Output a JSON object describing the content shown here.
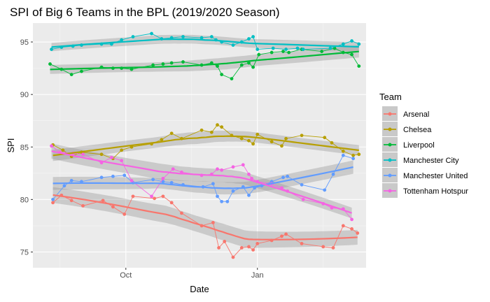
{
  "chart_data": {
    "type": "line",
    "title": "SPI of Big 6 Teams in the BPL (2019/2020 Season)",
    "xlabel": "Date",
    "ylabel": "SPI",
    "x_ticks": [
      {
        "label": "Oct",
        "date": "2019-10-01"
      },
      {
        "label": "Jan",
        "date": "2020-01-01"
      }
    ],
    "xlim": [
      "2019-07-28",
      "2020-03-17"
    ],
    "ylim": [
      73.5,
      96.8
    ],
    "y_ticks": [
      75,
      80,
      85,
      90,
      95
    ],
    "grid": true,
    "legend_title": "Team",
    "legend_position": "right",
    "smoothing": "loess with confidence band",
    "series": [
      {
        "name": "Arsenal",
        "color": "#F8766D",
        "points": [
          [
            "2019-08-11",
            79.7
          ],
          [
            "2019-08-17",
            80.4
          ],
          [
            "2019-08-24",
            79.9
          ],
          [
            "2019-09-01",
            79.4
          ],
          [
            "2019-09-15",
            79.9
          ],
          [
            "2019-09-22",
            79.3
          ],
          [
            "2019-09-30",
            78.6
          ],
          [
            "2019-10-06",
            80.3
          ],
          [
            "2019-10-21",
            80.1
          ],
          [
            "2019-10-27",
            80.3
          ],
          [
            "2019-11-02",
            79.7
          ],
          [
            "2019-11-09",
            78.7
          ],
          [
            "2019-11-23",
            77.5
          ],
          [
            "2019-12-01",
            77.8
          ],
          [
            "2019-12-05",
            75.4
          ],
          [
            "2019-12-09",
            76.0
          ],
          [
            "2019-12-15",
            74.5
          ],
          [
            "2019-12-21",
            75.4
          ],
          [
            "2019-12-26",
            75.5
          ],
          [
            "2019-12-29",
            75.2
          ],
          [
            "2020-01-01",
            75.8
          ],
          [
            "2020-01-11",
            76.1
          ],
          [
            "2020-01-18",
            76.5
          ],
          [
            "2020-01-21",
            76.7
          ],
          [
            "2020-02-01",
            75.8
          ],
          [
            "2020-02-16",
            75.5
          ],
          [
            "2020-02-23",
            75.4
          ],
          [
            "2020-03-01",
            77.5
          ],
          [
            "2020-03-07",
            77.2
          ],
          [
            "2020-03-11",
            76.8
          ]
        ]
      },
      {
        "name": "Chelsea",
        "color": "#B79F00",
        "points": [
          [
            "2019-08-11",
            85.2
          ],
          [
            "2019-08-18",
            84.7
          ],
          [
            "2019-08-24",
            84.1
          ],
          [
            "2019-08-31",
            84.5
          ],
          [
            "2019-09-14",
            84.3
          ],
          [
            "2019-09-22",
            83.9
          ],
          [
            "2019-09-28",
            84.7
          ],
          [
            "2019-10-05",
            85.0
          ],
          [
            "2019-10-19",
            85.3
          ],
          [
            "2019-10-26",
            85.7
          ],
          [
            "2019-11-02",
            86.3
          ],
          [
            "2019-11-09",
            85.8
          ],
          [
            "2019-11-23",
            86.6
          ],
          [
            "2019-11-30",
            86.4
          ],
          [
            "2019-12-04",
            87.1
          ],
          [
            "2019-12-07",
            86.9
          ],
          [
            "2019-12-14",
            86.1
          ],
          [
            "2019-12-21",
            85.8
          ],
          [
            "2019-12-26",
            85.6
          ],
          [
            "2019-12-29",
            85.3
          ],
          [
            "2020-01-01",
            86.2
          ],
          [
            "2020-01-11",
            85.5
          ],
          [
            "2020-01-18",
            85.1
          ],
          [
            "2020-01-21",
            85.8
          ],
          [
            "2020-02-01",
            86.1
          ],
          [
            "2020-02-17",
            85.9
          ],
          [
            "2020-02-22",
            85.4
          ],
          [
            "2020-03-01",
            84.6
          ],
          [
            "2020-03-08",
            84.2
          ],
          [
            "2020-03-12",
            84.3
          ]
        ]
      },
      {
        "name": "Liverpool",
        "color": "#00BA38",
        "points": [
          [
            "2019-08-09",
            92.9
          ],
          [
            "2019-08-17",
            92.4
          ],
          [
            "2019-08-24",
            91.9
          ],
          [
            "2019-08-31",
            92.2
          ],
          [
            "2019-09-14",
            92.6
          ],
          [
            "2019-09-22",
            92.5
          ],
          [
            "2019-09-28",
            92.5
          ],
          [
            "2019-10-05",
            92.4
          ],
          [
            "2019-10-20",
            92.8
          ],
          [
            "2019-10-27",
            92.9
          ],
          [
            "2019-11-02",
            93.0
          ],
          [
            "2019-11-10",
            93.1
          ],
          [
            "2019-11-23",
            92.8
          ],
          [
            "2019-11-30",
            93.0
          ],
          [
            "2019-12-04",
            92.7
          ],
          [
            "2019-12-07",
            91.9
          ],
          [
            "2019-12-14",
            91.5
          ],
          [
            "2019-12-21",
            92.8
          ],
          [
            "2019-12-26",
            93.0
          ],
          [
            "2019-12-29",
            92.6
          ],
          [
            "2020-01-02",
            93.8
          ],
          [
            "2020-01-11",
            94.0
          ],
          [
            "2020-01-19",
            94.1
          ],
          [
            "2020-01-23",
            94.0
          ],
          [
            "2020-02-01",
            94.3
          ],
          [
            "2020-02-15",
            94.1
          ],
          [
            "2020-02-24",
            94.4
          ],
          [
            "2020-03-01",
            94.0
          ],
          [
            "2020-03-07",
            93.8
          ],
          [
            "2020-03-12",
            92.7
          ]
        ]
      },
      {
        "name": "Manchester City",
        "color": "#00BFC4",
        "points": [
          [
            "2019-08-10",
            94.3
          ],
          [
            "2019-08-17",
            94.5
          ],
          [
            "2019-08-25",
            94.6
          ],
          [
            "2019-08-31",
            94.7
          ],
          [
            "2019-09-14",
            94.8
          ],
          [
            "2019-09-21",
            94.8
          ],
          [
            "2019-09-28",
            95.2
          ],
          [
            "2019-10-06",
            95.5
          ],
          [
            "2019-10-19",
            95.8
          ],
          [
            "2019-10-26",
            95.3
          ],
          [
            "2019-11-02",
            95.4
          ],
          [
            "2019-11-10",
            95.5
          ],
          [
            "2019-11-23",
            95.4
          ],
          [
            "2019-11-30",
            95.5
          ],
          [
            "2019-12-03",
            95.2
          ],
          [
            "2019-12-07",
            95.0
          ],
          [
            "2019-12-15",
            94.7
          ],
          [
            "2019-12-21",
            95.0
          ],
          [
            "2019-12-26",
            95.3
          ],
          [
            "2019-12-29",
            95.5
          ],
          [
            "2020-01-01",
            94.3
          ],
          [
            "2020-01-12",
            94.4
          ],
          [
            "2020-01-21",
            94.3
          ],
          [
            "2020-01-29",
            94.4
          ],
          [
            "2020-02-02",
            94.3
          ],
          [
            "2020-02-21",
            94.4
          ],
          [
            "2020-03-01",
            94.8
          ],
          [
            "2020-03-07",
            95.1
          ],
          [
            "2020-03-12",
            94.8
          ]
        ]
      },
      {
        "name": "Manchester United",
        "color": "#619CFF",
        "points": [
          [
            "2019-08-11",
            80.0
          ],
          [
            "2019-08-19",
            81.3
          ],
          [
            "2019-08-24",
            81.8
          ],
          [
            "2019-08-31",
            81.7
          ],
          [
            "2019-09-14",
            82.1
          ],
          [
            "2019-09-22",
            82.2
          ],
          [
            "2019-09-30",
            82.3
          ],
          [
            "2019-10-06",
            81.6
          ],
          [
            "2019-10-20",
            81.9
          ],
          [
            "2019-10-27",
            81.7
          ],
          [
            "2019-11-02",
            81.6
          ],
          [
            "2019-11-10",
            81.4
          ],
          [
            "2019-11-24",
            81.2
          ],
          [
            "2019-12-01",
            81.5
          ],
          [
            "2019-12-04",
            80.3
          ],
          [
            "2019-12-07",
            79.8
          ],
          [
            "2019-12-11",
            79.8
          ],
          [
            "2019-12-15",
            80.8
          ],
          [
            "2019-12-22",
            81.2
          ],
          [
            "2019-12-26",
            80.4
          ],
          [
            "2019-12-30",
            81.1
          ],
          [
            "2020-01-04",
            81.3
          ],
          [
            "2020-01-11",
            81.7
          ],
          [
            "2020-01-19",
            82.1
          ],
          [
            "2020-01-22",
            82.2
          ],
          [
            "2020-02-01",
            81.4
          ],
          [
            "2020-02-17",
            80.9
          ],
          [
            "2020-02-23",
            82.4
          ],
          [
            "2020-03-01",
            84.2
          ],
          [
            "2020-03-08",
            83.9
          ]
        ]
      },
      {
        "name": "Tottenham Hotspur",
        "color": "#F564E3",
        "points": [
          [
            "2019-08-10",
            85.1
          ],
          [
            "2019-08-16",
            84.5
          ],
          [
            "2019-08-25",
            84.4
          ],
          [
            "2019-09-01",
            84.3
          ],
          [
            "2019-09-14",
            83.5
          ],
          [
            "2019-09-21",
            84.0
          ],
          [
            "2019-09-28",
            83.7
          ],
          [
            "2019-10-05",
            81.8
          ],
          [
            "2019-10-19",
            80.3
          ],
          [
            "2019-10-27",
            82.0
          ],
          [
            "2019-11-03",
            82.9
          ],
          [
            "2019-11-09",
            82.6
          ],
          [
            "2019-11-23",
            82.3
          ],
          [
            "2019-11-30",
            82.4
          ],
          [
            "2019-12-04",
            82.9
          ],
          [
            "2019-12-07",
            82.8
          ],
          [
            "2019-12-15",
            83.1
          ],
          [
            "2019-12-22",
            83.3
          ],
          [
            "2019-12-26",
            82.4
          ],
          [
            "2019-12-28",
            82.0
          ],
          [
            "2020-01-01",
            81.7
          ],
          [
            "2020-01-11",
            81.5
          ],
          [
            "2020-01-18",
            81.1
          ],
          [
            "2020-01-22",
            80.8
          ],
          [
            "2020-02-02",
            80.0
          ],
          [
            "2020-02-16",
            79.6
          ],
          [
            "2020-02-22",
            79.2
          ],
          [
            "2020-03-01",
            79.1
          ],
          [
            "2020-03-07",
            78.1
          ]
        ]
      }
    ]
  }
}
